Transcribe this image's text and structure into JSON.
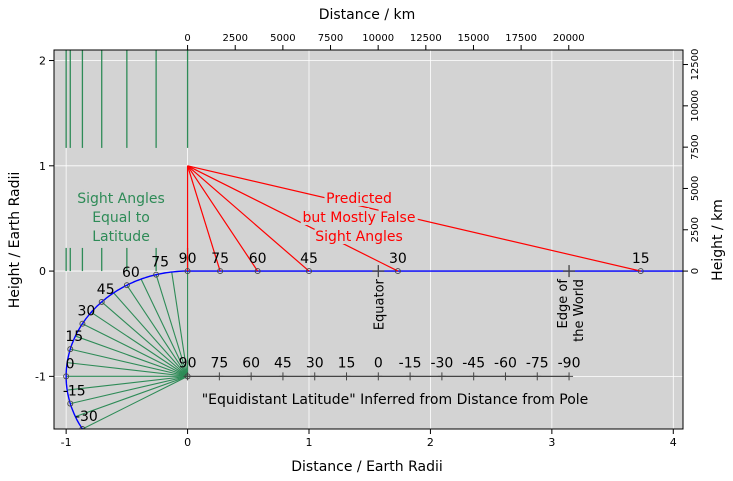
{
  "axes": {
    "xlabel": "Distance / Earth Radii",
    "ylabel": "Height / Earth Radii",
    "x2label": "Distance / km",
    "y2label": "Height / km",
    "xlim": [
      -1.1,
      4.08
    ],
    "ylim": [
      -1.5,
      2.1
    ],
    "xticks": [
      -1,
      0,
      1,
      2,
      3,
      4
    ],
    "yticks": [
      -1,
      0,
      1,
      2
    ],
    "x2ticks": [
      0,
      2500,
      5000,
      7500,
      10000,
      12500,
      15000,
      17500,
      20000
    ],
    "y2ticks": [
      0,
      2500,
      5000,
      7500,
      10000,
      12500
    ],
    "earth_radius_km": 6371,
    "grid": true,
    "background": "#d3d3d3"
  },
  "colors": {
    "red": "#ff0000",
    "green": "#2e8b57",
    "blue": "#0000ff",
    "dark": "#444444"
  },
  "globe_labels": [
    {
      "lat": 0,
      "text": "0"
    },
    {
      "lat": 15,
      "text": "15"
    },
    {
      "lat": 30,
      "text": "30"
    },
    {
      "lat": 45,
      "text": "45"
    },
    {
      "lat": 60,
      "text": "60"
    },
    {
      "lat": 75,
      "text": "75"
    },
    {
      "lat": -15,
      "text": "-15"
    },
    {
      "lat": -30,
      "text": "-30"
    }
  ],
  "globe_points_lat": [
    0,
    15,
    30,
    45,
    60,
    75,
    -15,
    -30
  ],
  "green_verticals_x": [
    -1.0,
    -0.966,
    -0.866,
    -0.707,
    -0.5,
    -0.259,
    0
  ],
  "red_lines": [
    {
      "x": 0,
      "label": "90"
    },
    {
      "x": 0.268,
      "label": "75"
    },
    {
      "x": 0.577,
      "label": "60"
    },
    {
      "x": 1.0,
      "label": "45"
    },
    {
      "x": 1.732,
      "label": "30"
    },
    {
      "x": 3.732,
      "label": "15"
    }
  ],
  "distance_scale": [
    {
      "x": 0,
      "label": "90"
    },
    {
      "x": 0.2618,
      "label": "75"
    },
    {
      "x": 0.5236,
      "label": "60"
    },
    {
      "x": 0.7854,
      "label": "45"
    },
    {
      "x": 1.0472,
      "label": "30"
    },
    {
      "x": 1.309,
      "label": "15"
    },
    {
      "x": 1.5708,
      "label": "0"
    },
    {
      "x": 1.8326,
      "label": "-15"
    },
    {
      "x": 2.0944,
      "label": "-30"
    },
    {
      "x": 2.3562,
      "label": "-45"
    },
    {
      "x": 2.618,
      "label": "-60"
    },
    {
      "x": 2.8798,
      "label": "-75"
    },
    {
      "x": 3.1416,
      "label": "-90"
    }
  ],
  "markers": [
    {
      "x": 1.5708,
      "label": "Equator"
    },
    {
      "x": 3.1416,
      "label_lines": [
        "Edge of",
        "the World"
      ]
    }
  ],
  "annotations": {
    "predicted": [
      "Predicted",
      "but Mostly False",
      "Sight Angles"
    ],
    "sight_equal": [
      "Sight Angles",
      "Equal to",
      "Latitude"
    ],
    "inferred": "\"Equidistant Latitude\" Inferred from Distance from Pole"
  }
}
